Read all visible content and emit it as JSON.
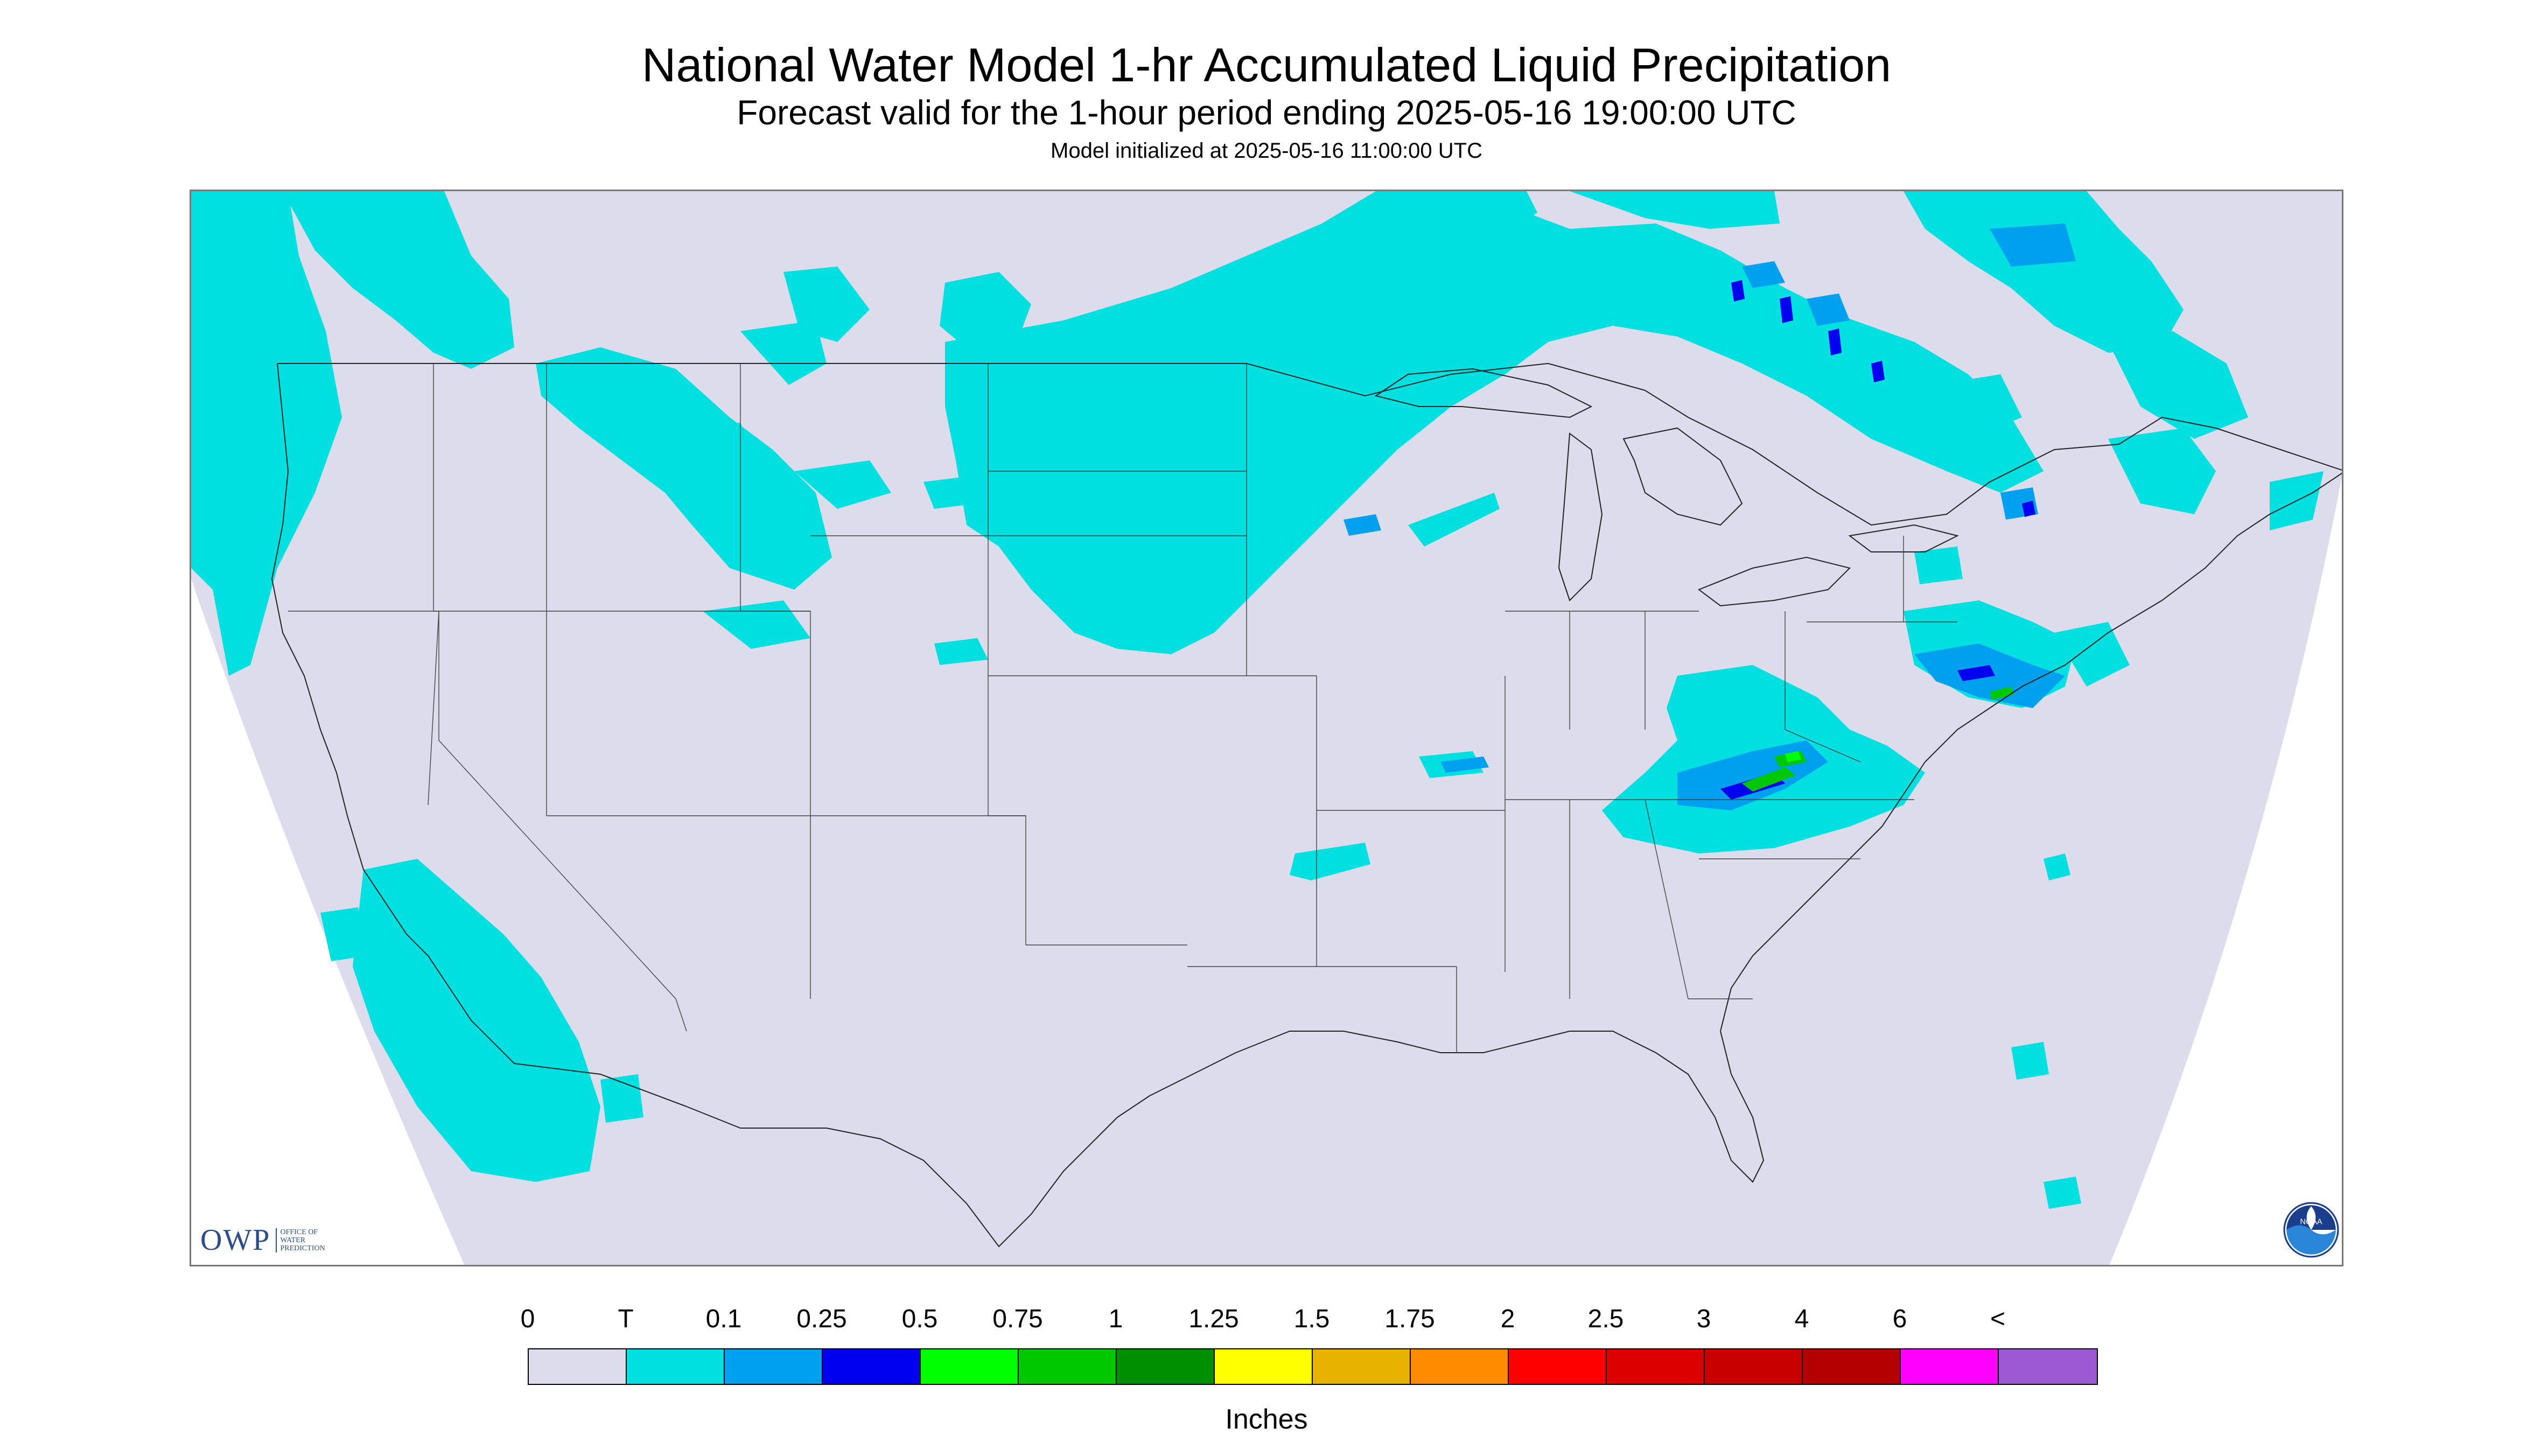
{
  "title": "National Water Model 1-hr Accumulated Liquid Precipitation",
  "subtitle": "Forecast valid for the 1-hour period ending 2025-05-16 19:00:00 UTC",
  "init_line": "Model initialized at 2025-05-16 11:00:00 UTC",
  "logos": {
    "owp_text": "OWP",
    "owp_sub": [
      "OFFICE OF",
      "WATER",
      "PREDICTION"
    ],
    "noaa_text": "NOAA"
  },
  "colors": {
    "no_precip": "#dcdcec",
    "trace": "#00e0e0",
    "c010": "#00a0f0",
    "c025": "#0000f0",
    "c050": "#00ff00",
    "c075": "#00c800",
    "c100": "#008f00",
    "c125": "#ffff00",
    "c150": "#e6b400",
    "c175": "#ff8c00",
    "c200": "#ff0000",
    "c250": "#dc0000",
    "c300": "#c80000",
    "c400": "#b40000",
    "c600": "#ff00ff",
    "c600plus": "#9c59d1"
  },
  "legend": {
    "labels": [
      "0",
      "T",
      "0.1",
      "0.25",
      "0.5",
      "0.75",
      "1",
      "1.25",
      "1.5",
      "1.75",
      "2",
      "2.5",
      "3",
      "4",
      "6",
      "<"
    ],
    "swatches": [
      "#dcdcec",
      "#00e0e0",
      "#00a0f0",
      "#0000f0",
      "#00ff00",
      "#00c800",
      "#008f00",
      "#ffff00",
      "#e6b400",
      "#ff8c00",
      "#ff0000",
      "#dc0000",
      "#c80000",
      "#b40000",
      "#ff00ff",
      "#9c59d1"
    ],
    "units": "Inches"
  }
}
